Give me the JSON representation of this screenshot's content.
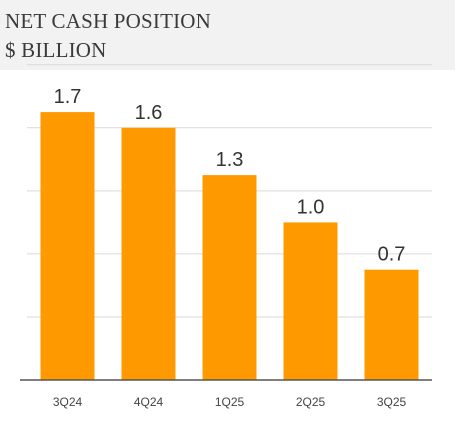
{
  "chart_data": {
    "type": "bar",
    "title": "NET CASH POSITION",
    "subtitle": "$ BILLION",
    "categories": [
      "3Q24",
      "4Q24",
      "1Q25",
      "2Q25",
      "3Q25"
    ],
    "values": [
      1.7,
      1.6,
      1.3,
      1.0,
      0.7
    ],
    "value_labels": [
      "1.7",
      "1.6",
      "1.3",
      "1.0",
      "0.7"
    ],
    "ylim": [
      0,
      2.0
    ],
    "grid": true,
    "bar_color": "#ff9900",
    "xlabel": "",
    "ylabel": ""
  }
}
